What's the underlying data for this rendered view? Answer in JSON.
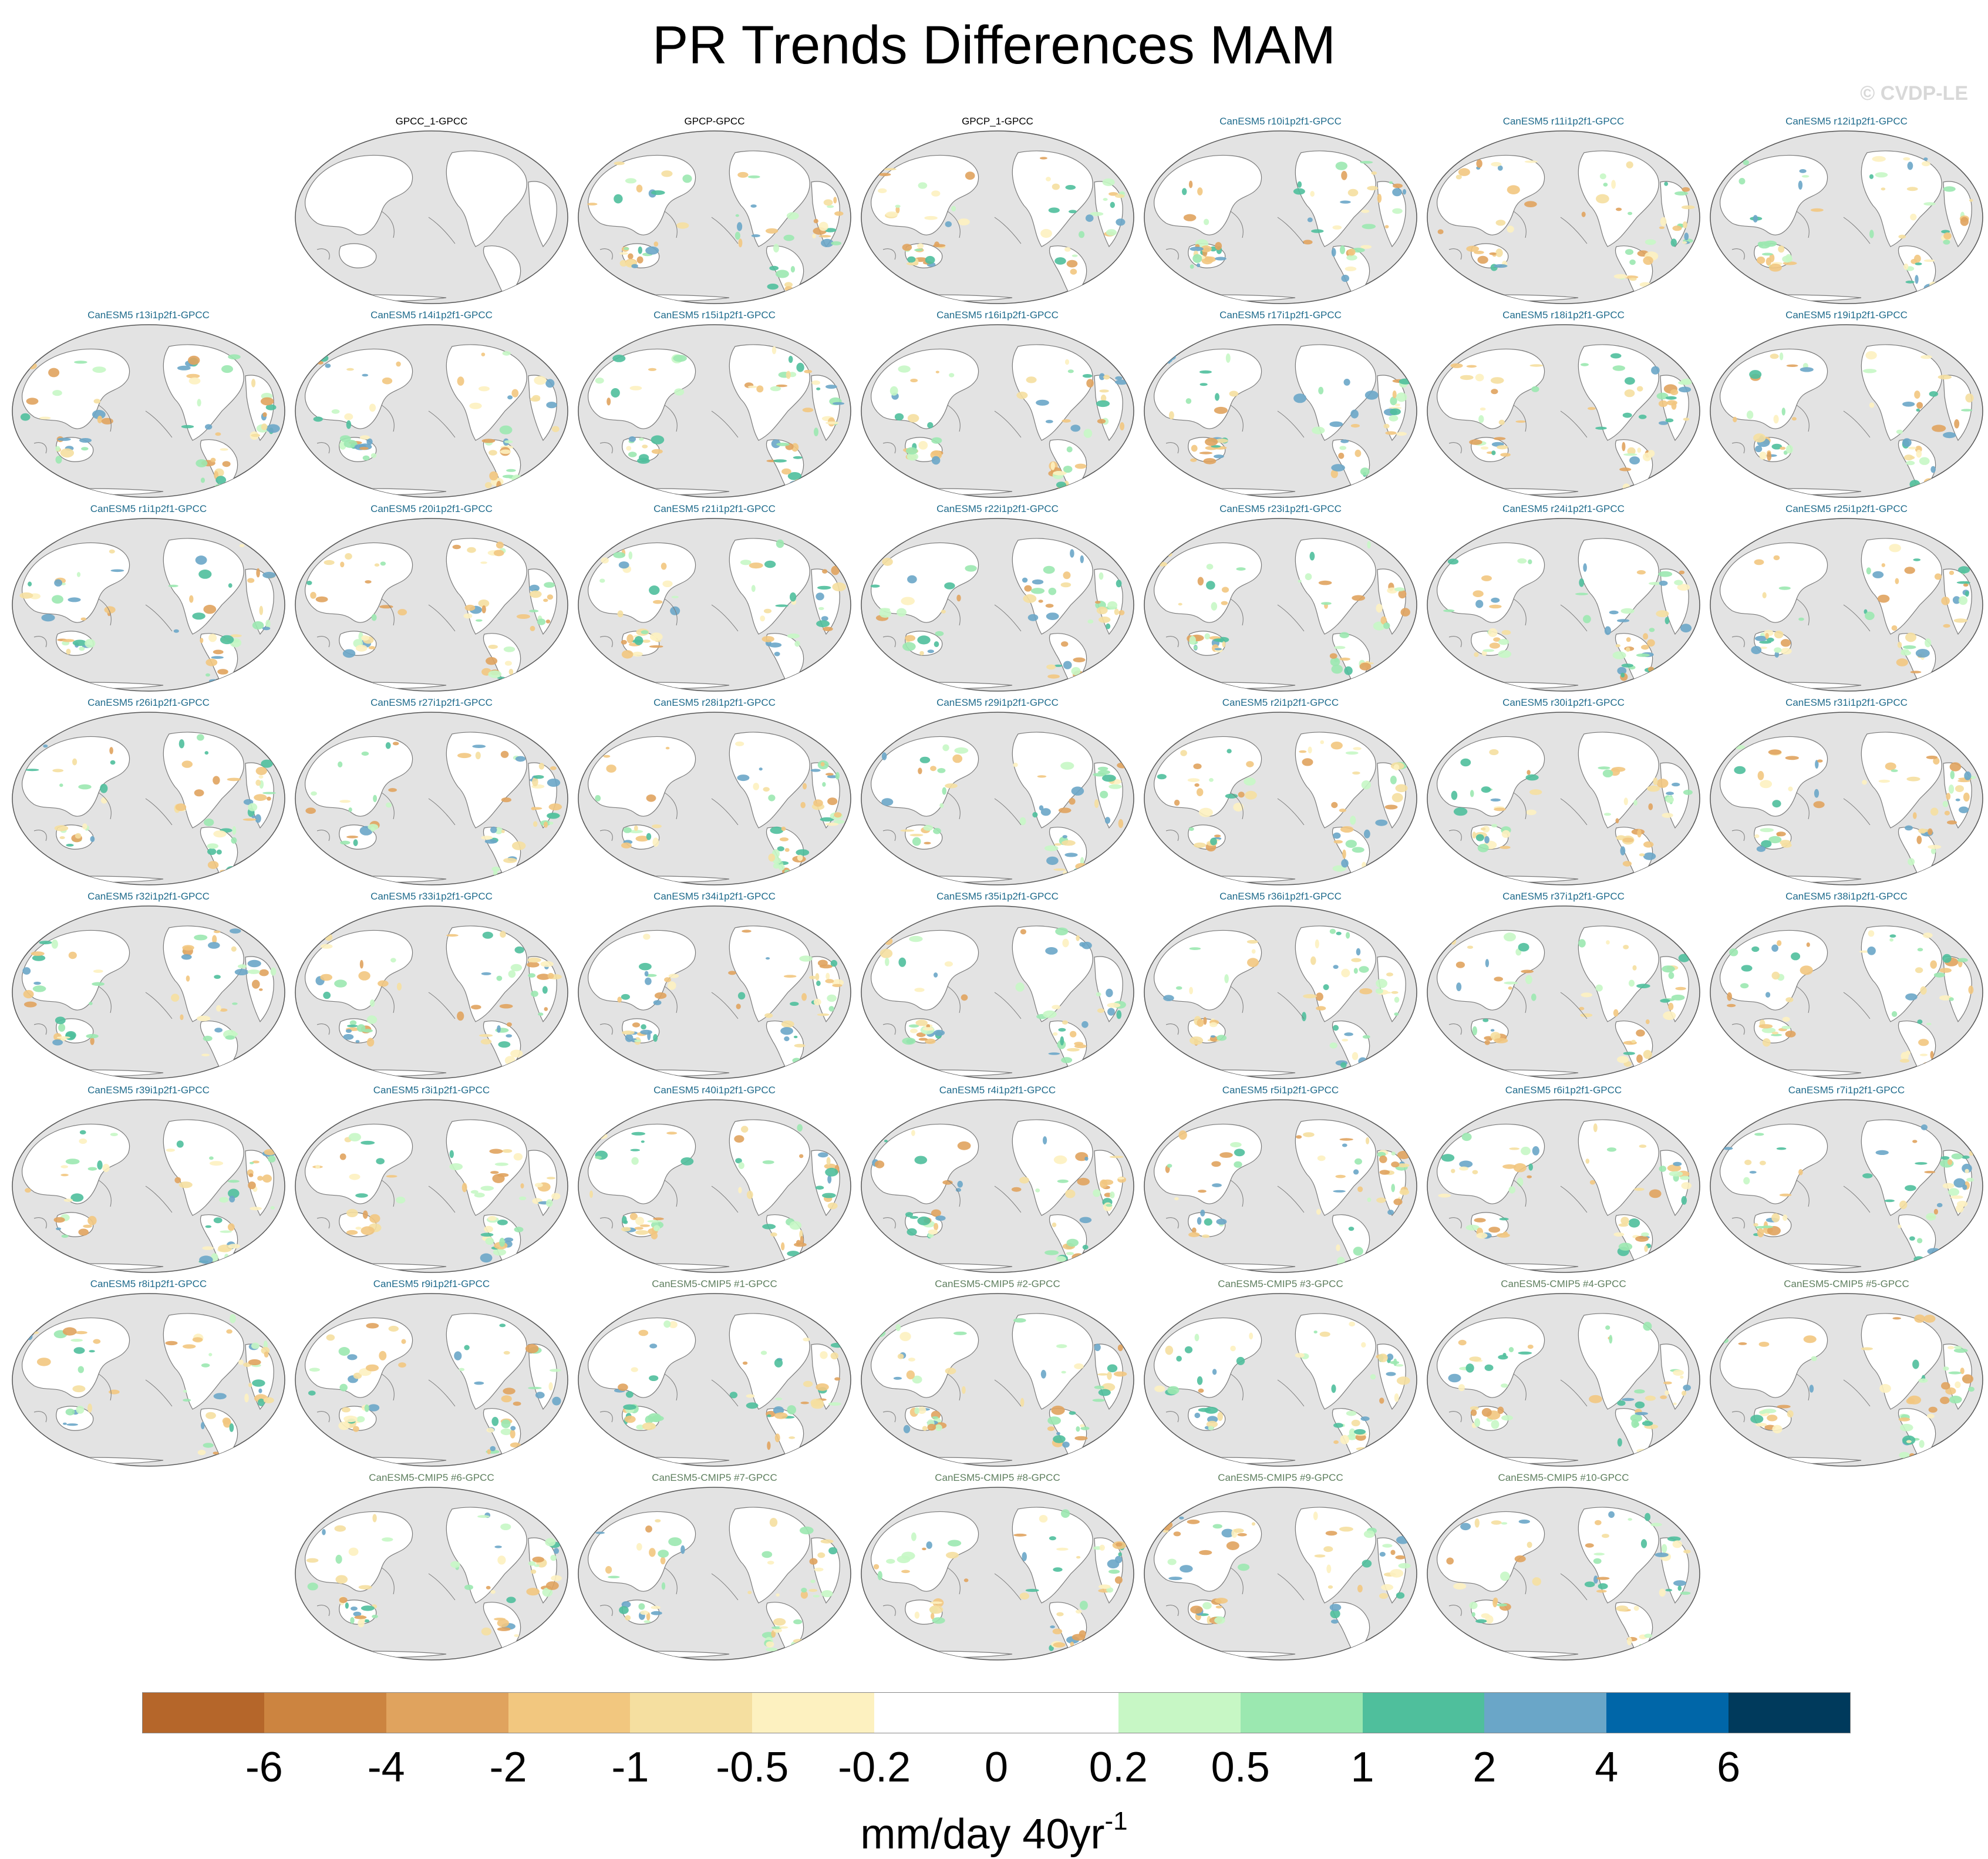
{
  "title": "PR Trends Differences MAM",
  "watermark": "© CVDP-LE",
  "panels": [
    {
      "label": "GPCC_1-GPCC",
      "group": "obs"
    },
    {
      "label": "GPCP-GPCC",
      "group": "obs"
    },
    {
      "label": "GPCP_1-GPCC",
      "group": "obs"
    },
    {
      "label": "CanESM5 r10i1p2f1-GPCC",
      "group": "le"
    },
    {
      "label": "CanESM5 r11i1p2f1-GPCC",
      "group": "le"
    },
    {
      "label": "CanESM5 r12i1p2f1-GPCC",
      "group": "le"
    },
    {
      "label": "CanESM5 r13i1p2f1-GPCC",
      "group": "le"
    },
    {
      "label": "CanESM5 r14i1p2f1-GPCC",
      "group": "le"
    },
    {
      "label": "CanESM5 r15i1p2f1-GPCC",
      "group": "le"
    },
    {
      "label": "CanESM5 r16i1p2f1-GPCC",
      "group": "le"
    },
    {
      "label": "CanESM5 r17i1p2f1-GPCC",
      "group": "le"
    },
    {
      "label": "CanESM5 r18i1p2f1-GPCC",
      "group": "le"
    },
    {
      "label": "CanESM5 r19i1p2f1-GPCC",
      "group": "le"
    },
    {
      "label": "CanESM5 r1i1p2f1-GPCC",
      "group": "le"
    },
    {
      "label": "CanESM5 r20i1p2f1-GPCC",
      "group": "le"
    },
    {
      "label": "CanESM5 r21i1p2f1-GPCC",
      "group": "le"
    },
    {
      "label": "CanESM5 r22i1p2f1-GPCC",
      "group": "le"
    },
    {
      "label": "CanESM5 r23i1p2f1-GPCC",
      "group": "le"
    },
    {
      "label": "CanESM5 r24i1p2f1-GPCC",
      "group": "le"
    },
    {
      "label": "CanESM5 r25i1p2f1-GPCC",
      "group": "le"
    },
    {
      "label": "CanESM5 r26i1p2f1-GPCC",
      "group": "le"
    },
    {
      "label": "CanESM5 r27i1p2f1-GPCC",
      "group": "le"
    },
    {
      "label": "CanESM5 r28i1p2f1-GPCC",
      "group": "le"
    },
    {
      "label": "CanESM5 r29i1p2f1-GPCC",
      "group": "le"
    },
    {
      "label": "CanESM5 r2i1p2f1-GPCC",
      "group": "le"
    },
    {
      "label": "CanESM5 r30i1p2f1-GPCC",
      "group": "le"
    },
    {
      "label": "CanESM5 r31i1p2f1-GPCC",
      "group": "le"
    },
    {
      "label": "CanESM5 r32i1p2f1-GPCC",
      "group": "le"
    },
    {
      "label": "CanESM5 r33i1p2f1-GPCC",
      "group": "le"
    },
    {
      "label": "CanESM5 r34i1p2f1-GPCC",
      "group": "le"
    },
    {
      "label": "CanESM5 r35i1p2f1-GPCC",
      "group": "le"
    },
    {
      "label": "CanESM5 r36i1p2f1-GPCC",
      "group": "le"
    },
    {
      "label": "CanESM5 r37i1p2f1-GPCC",
      "group": "le"
    },
    {
      "label": "CanESM5 r38i1p2f1-GPCC",
      "group": "le"
    },
    {
      "label": "CanESM5 r39i1p2f1-GPCC",
      "group": "le"
    },
    {
      "label": "CanESM5 r3i1p2f1-GPCC",
      "group": "le"
    },
    {
      "label": "CanESM5 r40i1p2f1-GPCC",
      "group": "le"
    },
    {
      "label": "CanESM5 r4i1p2f1-GPCC",
      "group": "le"
    },
    {
      "label": "CanESM5 r5i1p2f1-GPCC",
      "group": "le"
    },
    {
      "label": "CanESM5 r6i1p2f1-GPCC",
      "group": "le"
    },
    {
      "label": "CanESM5 r7i1p2f1-GPCC",
      "group": "le"
    },
    {
      "label": "CanESM5 r8i1p2f1-GPCC",
      "group": "le"
    },
    {
      "label": "CanESM5 r9i1p2f1-GPCC",
      "group": "le"
    },
    {
      "label": "CanESM5-CMIP5 #1-GPCC",
      "group": "cmip5"
    },
    {
      "label": "CanESM5-CMIP5 #2-GPCC",
      "group": "cmip5"
    },
    {
      "label": "CanESM5-CMIP5 #3-GPCC",
      "group": "cmip5"
    },
    {
      "label": "CanESM5-CMIP5 #4-GPCC",
      "group": "cmip5"
    },
    {
      "label": "CanESM5-CMIP5 #5-GPCC",
      "group": "cmip5"
    },
    {
      "label": "CanESM5-CMIP5 #6-GPCC",
      "group": "cmip5"
    },
    {
      "label": "CanESM5-CMIP5 #7-GPCC",
      "group": "cmip5"
    },
    {
      "label": "CanESM5-CMIP5 #8-GPCC",
      "group": "cmip5"
    },
    {
      "label": "CanESM5-CMIP5 #9-GPCC",
      "group": "cmip5"
    },
    {
      "label": "CanESM5-CMIP5 #10-GPCC",
      "group": "cmip5"
    }
  ],
  "colorbar": {
    "colors": [
      "#b5662a",
      "#cc8440",
      "#e0a35e",
      "#f2c77f",
      "#f5dfa0",
      "#fdf1c0",
      "#ffffff",
      "#ffffff",
      "#c7f7c5",
      "#9be8b0",
      "#4fbf9c",
      "#6aa6c8",
      "#0066a8",
      "#003a5c"
    ],
    "ticks": [
      "-6",
      "-4",
      "-2",
      "-1",
      "-0.5",
      "-0.2",
      "0",
      "0.2",
      "0.5",
      "1",
      "2",
      "4",
      "6"
    ],
    "units": "mm/day 40yr",
    "units_exponent": "-1"
  },
  "colors": {
    "ocean": "#e3e3e3",
    "land": "#ffffff",
    "coast": "#7a7a7a"
  }
}
